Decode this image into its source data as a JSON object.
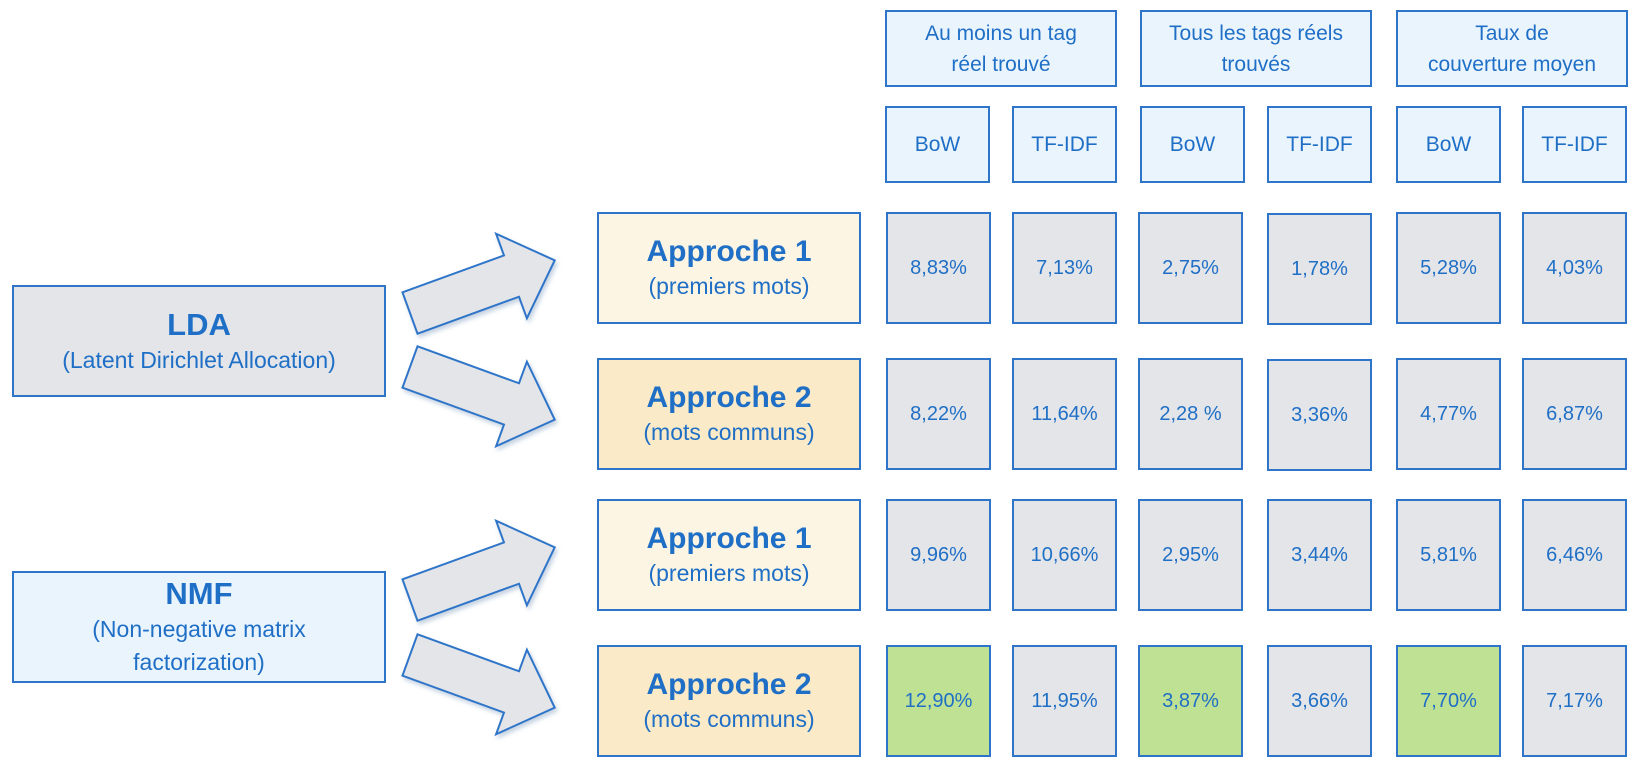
{
  "metric_headers": [
    {
      "line1": "Au moins un tag",
      "line2": "réel trouvé"
    },
    {
      "line1": "Tous les tags réels",
      "line2": "trouvés"
    },
    {
      "line1": "Taux de",
      "line2": "couverture moyen"
    }
  ],
  "sub_headers": [
    "BoW",
    "TF-IDF",
    "BoW",
    "TF-IDF",
    "BoW",
    "TF-IDF"
  ],
  "models": [
    {
      "title": "LDA",
      "subtitle": "(Latent Dirichlet Allocation)"
    },
    {
      "title": "NMF",
      "subtitle_line1": "(Non-negative matrix",
      "subtitle_line2": "factorization)"
    }
  ],
  "approaches": [
    {
      "title": "Approche 1",
      "subtitle": "(premiers mots)"
    },
    {
      "title": "Approche 2",
      "subtitle": "(mots communs)"
    },
    {
      "title": "Approche 1",
      "subtitle": "(premiers mots)"
    },
    {
      "title": "Approche 2",
      "subtitle": "(mots communs)"
    }
  ],
  "rows": [
    [
      "8,83%",
      "7,13%",
      "2,75%",
      "1,78%",
      "5,28%",
      "4,03%"
    ],
    [
      "8,22%",
      "11,64%",
      "2,28 %",
      "3,36%",
      "4,77%",
      "6,87%"
    ],
    [
      "9,96%",
      "10,66%",
      "2,95%",
      "3,44%",
      "5,81%",
      "6,46%"
    ],
    [
      "12,90%",
      "11,95%",
      "3,87%",
      "3,66%",
      "7,70%",
      "7,17%"
    ]
  ],
  "highlight_color": "#bfe193",
  "highlighted_cells": [
    [
      3,
      0
    ],
    [
      3,
      2
    ],
    [
      3,
      4
    ]
  ]
}
